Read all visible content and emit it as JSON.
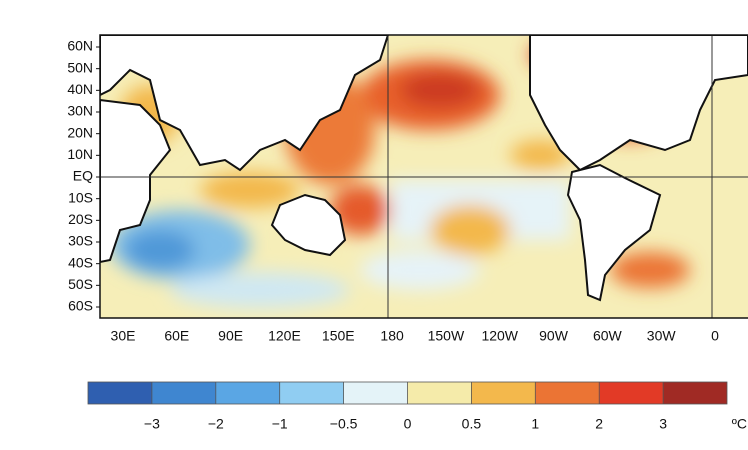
{
  "map": {
    "lat_labels": [
      "60N",
      "50N",
      "40N",
      "30N",
      "20N",
      "10N",
      "EQ",
      "10S",
      "20S",
      "30S",
      "40S",
      "50S",
      "60S"
    ],
    "lon_labels": [
      "30E",
      "60E",
      "90E",
      "120E",
      "150E",
      "180",
      "150W",
      "120W",
      "90W",
      "60W",
      "30W",
      "0"
    ]
  },
  "colorbar": {
    "colors": [
      "#2f5fb0",
      "#3f86d0",
      "#5aa6e4",
      "#90cdf2",
      "#e4f3f8",
      "#f5ebaa",
      "#f3b84c",
      "#eb7434",
      "#e23a26",
      "#a02a24"
    ],
    "ticks": [
      {
        "value": -3,
        "label": "−3"
      },
      {
        "value": -2,
        "label": "−2"
      },
      {
        "value": -1,
        "label": "−1"
      },
      {
        "value": -0.5,
        "label": "−0.5"
      },
      0,
      0.5,
      1,
      2,
      3
    ],
    "unit": "ºC"
  }
}
